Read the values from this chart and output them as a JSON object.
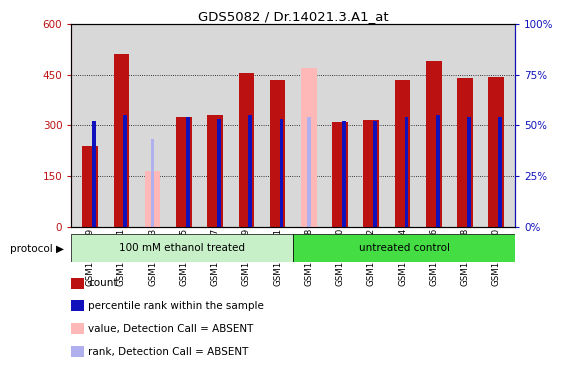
{
  "title": "GDS5082 / Dr.14021.3.A1_at",
  "samples": [
    "GSM1176779",
    "GSM1176781",
    "GSM1176783",
    "GSM1176785",
    "GSM1176787",
    "GSM1176789",
    "GSM1176791",
    "GSM1176778",
    "GSM1176780",
    "GSM1176782",
    "GSM1176784",
    "GSM1176786",
    "GSM1176788",
    "GSM1176790"
  ],
  "count_values": [
    240,
    510,
    0,
    325,
    330,
    455,
    435,
    0,
    310,
    315,
    435,
    490,
    440,
    442
  ],
  "rank_values": [
    52,
    55,
    0,
    54,
    53,
    55,
    53,
    0,
    52,
    52,
    54,
    55,
    54,
    54
  ],
  "absent_count": [
    0,
    0,
    165,
    0,
    0,
    0,
    0,
    470,
    0,
    0,
    0,
    0,
    0,
    0
  ],
  "absent_rank": [
    0,
    0,
    43,
    0,
    0,
    0,
    0,
    54,
    0,
    0,
    0,
    0,
    0,
    0
  ],
  "group1_label": "100 mM ethanol treated",
  "group2_label": "untreated control",
  "group1_count": 7,
  "group2_count": 7,
  "ylim_left": [
    0,
    600
  ],
  "ylim_right": [
    0,
    100
  ],
  "yticks_left": [
    0,
    150,
    300,
    450,
    600
  ],
  "yticks_right": [
    0,
    25,
    50,
    75,
    100
  ],
  "ytick_labels_left": [
    "0",
    "150",
    "300",
    "450",
    "600"
  ],
  "ytick_labels_right": [
    "0%",
    "25%",
    "50%",
    "75%",
    "100%"
  ],
  "color_red": "#bb1111",
  "color_blue": "#1111bb",
  "color_pink": "#ffb8b8",
  "color_lightblue": "#b0b0ee",
  "color_group1_bg": "#c8f0c8",
  "color_group2_bg": "#44dd44",
  "color_axis_bg": "#d8d8d8",
  "bar_width": 0.5,
  "rank_bar_width": 0.12
}
